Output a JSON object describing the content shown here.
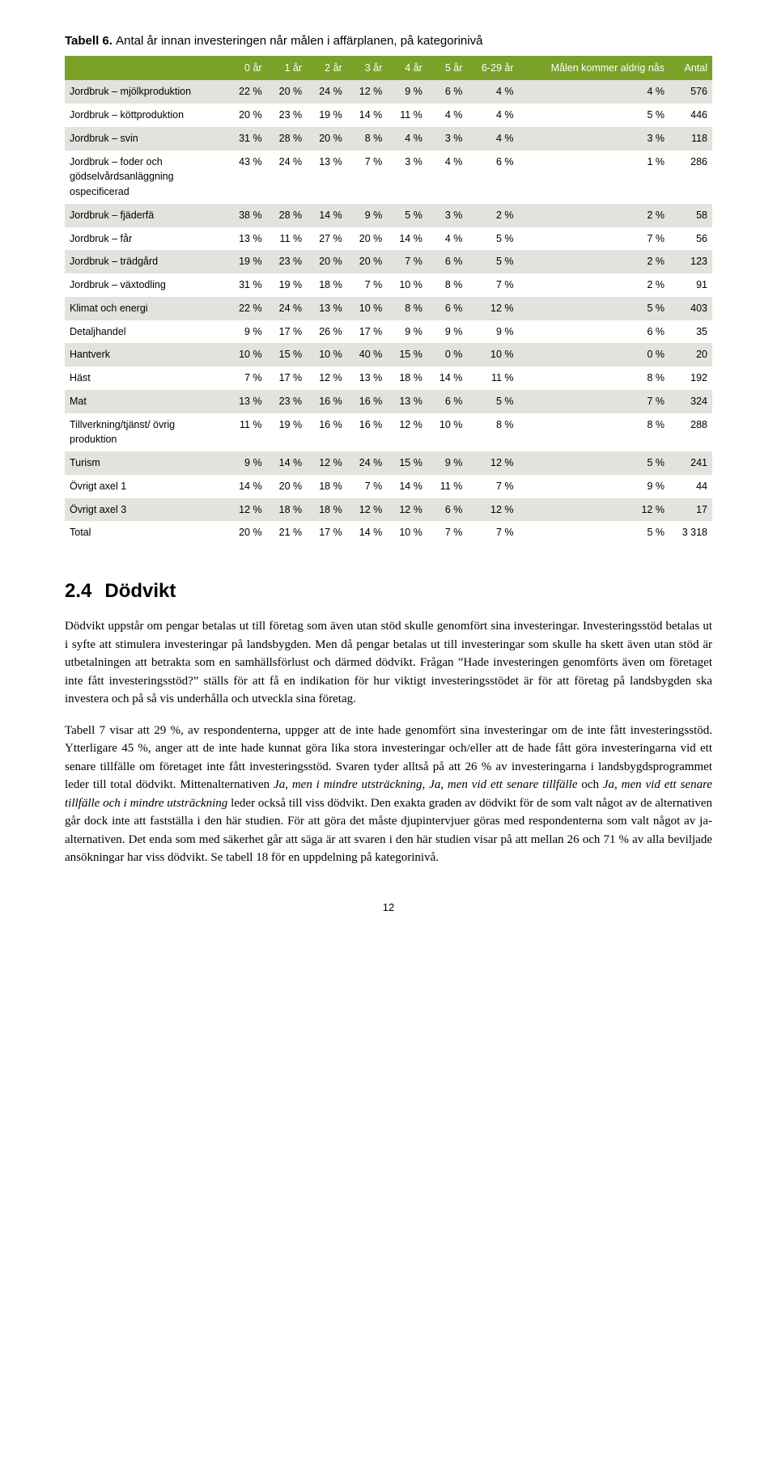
{
  "table": {
    "title_prefix": "Tabell 6.",
    "title_caption": "Antal år innan investeringen når målen i affärplanen, på kategorinivå",
    "header_bg": "#7aa128",
    "header_color": "#ffffff",
    "row_grey": "#e3e2dd",
    "row_white": "#ffffff",
    "columns": [
      "",
      "0 år",
      "1 år",
      "2 år",
      "3 år",
      "4 år",
      "5 år",
      "6-29 år",
      "Målen kommer aldrig nås",
      "Antal"
    ],
    "rows": [
      {
        "label": "Jordbruk – mjölkproduktion",
        "vals": [
          "22 %",
          "20 %",
          "24 %",
          "12 %",
          "9 %",
          "6 %",
          "4 %",
          "4 %",
          "576"
        ],
        "shade": "grey"
      },
      {
        "label": "Jordbruk – köttproduktion",
        "vals": [
          "20 %",
          "23 %",
          "19 %",
          "14 %",
          "11 %",
          "4 %",
          "4 %",
          "5 %",
          "446"
        ],
        "shade": "white"
      },
      {
        "label": "Jordbruk – svin",
        "vals": [
          "31 %",
          "28 %",
          "20 %",
          "8 %",
          "4 %",
          "3 %",
          "4 %",
          "3 %",
          "118"
        ],
        "shade": "grey"
      },
      {
        "label": "Jordbruk – foder och gödselvårdsanläggning ospecificerad",
        "vals": [
          "43 %",
          "24 %",
          "13 %",
          "7 %",
          "3 %",
          "4 %",
          "6 %",
          "1 %",
          "286"
        ],
        "shade": "white"
      },
      {
        "label": "Jordbruk – fjäderfä",
        "vals": [
          "38 %",
          "28 %",
          "14 %",
          "9 %",
          "5 %",
          "3 %",
          "2 %",
          "2 %",
          "58"
        ],
        "shade": "grey"
      },
      {
        "label": "Jordbruk – får",
        "vals": [
          "13 %",
          "11 %",
          "27 %",
          "20 %",
          "14 %",
          "4 %",
          "5 %",
          "7 %",
          "56"
        ],
        "shade": "white"
      },
      {
        "label": "Jordbruk – trädgård",
        "vals": [
          "19 %",
          "23 %",
          "20 %",
          "20 %",
          "7 %",
          "6 %",
          "5 %",
          "2 %",
          "123"
        ],
        "shade": "grey"
      },
      {
        "label": "Jordbruk – växtodling",
        "vals": [
          "31 %",
          "19 %",
          "18 %",
          "7 %",
          "10 %",
          "8 %",
          "7 %",
          "2 %",
          "91"
        ],
        "shade": "white"
      },
      {
        "label": "Klimat och energi",
        "vals": [
          "22 %",
          "24 %",
          "13 %",
          "10 %",
          "8 %",
          "6 %",
          "12 %",
          "5 %",
          "403"
        ],
        "shade": "grey"
      },
      {
        "label": "Detaljhandel",
        "vals": [
          "9 %",
          "17 %",
          "26 %",
          "17 %",
          "9 %",
          "9 %",
          "9 %",
          "6 %",
          "35"
        ],
        "shade": "white"
      },
      {
        "label": "Hantverk",
        "vals": [
          "10 %",
          "15 %",
          "10 %",
          "40 %",
          "15 %",
          "0 %",
          "10 %",
          "0 %",
          "20"
        ],
        "shade": "grey"
      },
      {
        "label": "Häst",
        "vals": [
          "7 %",
          "17 %",
          "12 %",
          "13 %",
          "18 %",
          "14 %",
          "11 %",
          "8 %",
          "192"
        ],
        "shade": "white"
      },
      {
        "label": "Mat",
        "vals": [
          "13 %",
          "23 %",
          "16 %",
          "16 %",
          "13 %",
          "6 %",
          "5 %",
          "7 %",
          "324"
        ],
        "shade": "grey"
      },
      {
        "label": "Tillverkning/tjänst/ övrig produktion",
        "vals": [
          "11 %",
          "19 %",
          "16 %",
          "16 %",
          "12 %",
          "10 %",
          "8 %",
          "8 %",
          "288"
        ],
        "shade": "white"
      },
      {
        "label": "Turism",
        "vals": [
          "9 %",
          "14 %",
          "12 %",
          "24 %",
          "15 %",
          "9 %",
          "12 %",
          "5 %",
          "241"
        ],
        "shade": "grey"
      },
      {
        "label": "Övrigt axel 1",
        "vals": [
          "14 %",
          "20 %",
          "18 %",
          "7 %",
          "14 %",
          "11 %",
          "7 %",
          "9 %",
          "44"
        ],
        "shade": "white"
      },
      {
        "label": "Övrigt axel 3",
        "vals": [
          "12 %",
          "18 %",
          "18 %",
          "12 %",
          "12 %",
          "6 %",
          "12 %",
          "12 %",
          "17"
        ],
        "shade": "grey"
      },
      {
        "label": "Total",
        "vals": [
          "20 %",
          "21 %",
          "17 %",
          "14 %",
          "10 %",
          "7 %",
          "7 %",
          "5 %",
          "3 318"
        ],
        "shade": "white"
      }
    ]
  },
  "section": {
    "number": "2.4",
    "title": "Dödvikt",
    "p1": "Dödvikt uppstår om pengar betalas ut till företag som även utan stöd skulle genomfört sina investeringar. Investeringsstöd betalas ut i syfte att stimulera investeringar på landsbygden. Men då pengar betalas ut till investeringar som skulle ha skett även utan stöd är utbetalningen att betrakta som en samhällsförlust och därmed dödvikt. Frågan ”Hade investeringen genomförts även om företaget inte fått investeringsstöd?” ställs för att få en indikation för hur viktigt investeringsstödet är för att företag på landsbygden ska investera och på så vis underhålla och utveckla sina företag.",
    "p2_a": "Tabell 7 visar att 29 %, av respondenterna, uppger att de inte hade genomfört sina investeringar om de inte fått investeringsstöd. Ytterligare 45 %, anger att de inte hade kunnat göra lika stora investeringar och/eller att de hade fått göra investeringarna vid ett senare tillfälle om företaget inte fått investeringsstöd.  Svaren tyder alltså på att 26 % av investeringarna i landsbygdsprogrammet leder till total dödvikt. Mittenalternativen ",
    "p2_em1": "Ja, men i mindre utsträckning",
    "p2_b": ", ",
    "p2_em2": "Ja, men vid ett senare tillfälle",
    "p2_c": " och ",
    "p2_em3": "Ja, men vid ett senare tillfälle och i mindre utsträckning",
    "p2_d": " leder också till viss dödvikt. Den exakta graden av dödvikt för de som valt något av de alternativen går dock inte att fastställa i den här studien. För att göra det måste djupintervjuer göras med respondenterna som valt något av ja-alternativen. Det enda som med säkerhet går att säga är att svaren i den här studien visar på att mellan 26 och 71 % av alla beviljade ansökningar har viss dödvikt. Se tabell 18 för en uppdelning på kategorinivå."
  },
  "pagenum": "12"
}
